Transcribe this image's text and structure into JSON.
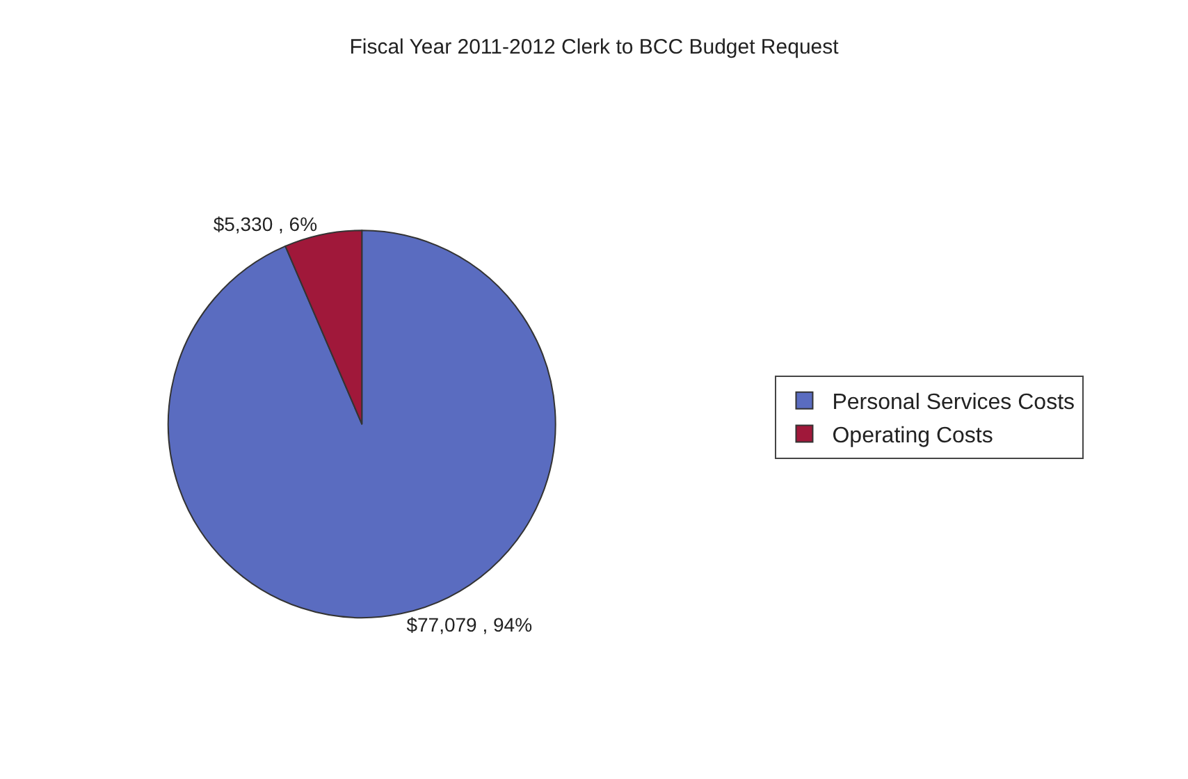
{
  "chart_data": {
    "type": "pie",
    "title": "Fiscal Year 2011-2012 Clerk to BCC Budget Request",
    "categories": [
      "Personal Services Costs",
      "Operating Costs"
    ],
    "values": [
      77079,
      5330
    ],
    "colors": [
      "#5a6cc0",
      "#a0183a"
    ],
    "value_labels": [
      "$77,079 , 94%",
      "$5,330 , 6%"
    ],
    "legend": "right"
  }
}
